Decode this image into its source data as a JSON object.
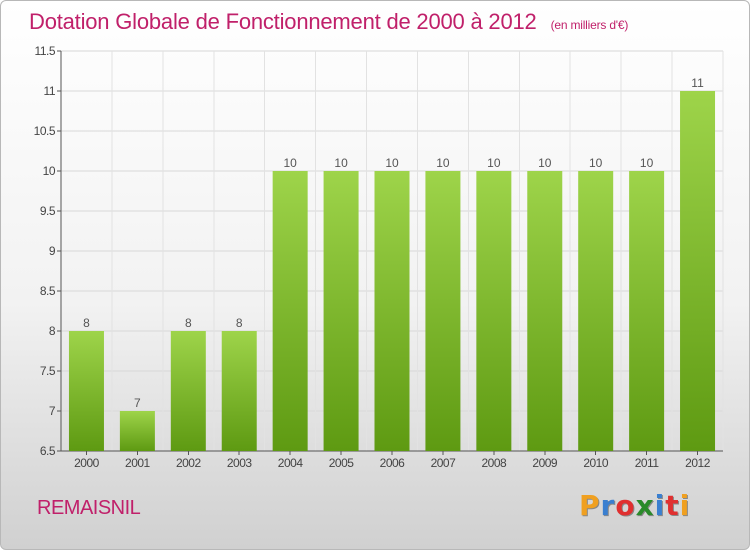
{
  "header": {
    "title": "Dotation Globale de Fonctionnement de 2000 à 2012",
    "subtitle": "(en milliers d'€)"
  },
  "footer": {
    "commune": "REMAISNIL",
    "logo_letters": [
      "P",
      "r",
      "o",
      "x",
      "i",
      "t",
      "i"
    ],
    "logo_colors": [
      "#f0a020",
      "#3a7fd0",
      "#e03030",
      "#2a8a2a",
      "#3a7fd0",
      "#e03030",
      "#f0a020"
    ]
  },
  "chart_data": {
    "type": "bar",
    "categories": [
      "2000",
      "2001",
      "2002",
      "2003",
      "2004",
      "2005",
      "2006",
      "2007",
      "2008",
      "2009",
      "2010",
      "2011",
      "2012"
    ],
    "values": [
      8,
      7,
      8,
      8,
      10,
      10,
      10,
      10,
      10,
      10,
      10,
      10,
      11
    ],
    "title": "Dotation Globale de Fonctionnement de 2000 à 2012",
    "subtitle": "(en milliers d'€)",
    "ylim": [
      6.5,
      11.5
    ],
    "yticks": [
      6.5,
      7,
      7.5,
      8,
      8.5,
      9,
      9.5,
      10,
      10.5,
      11,
      11.5
    ],
    "grid": true,
    "bar_color_top": "#9ed44a",
    "bar_color_bottom": "#5e9a12"
  }
}
